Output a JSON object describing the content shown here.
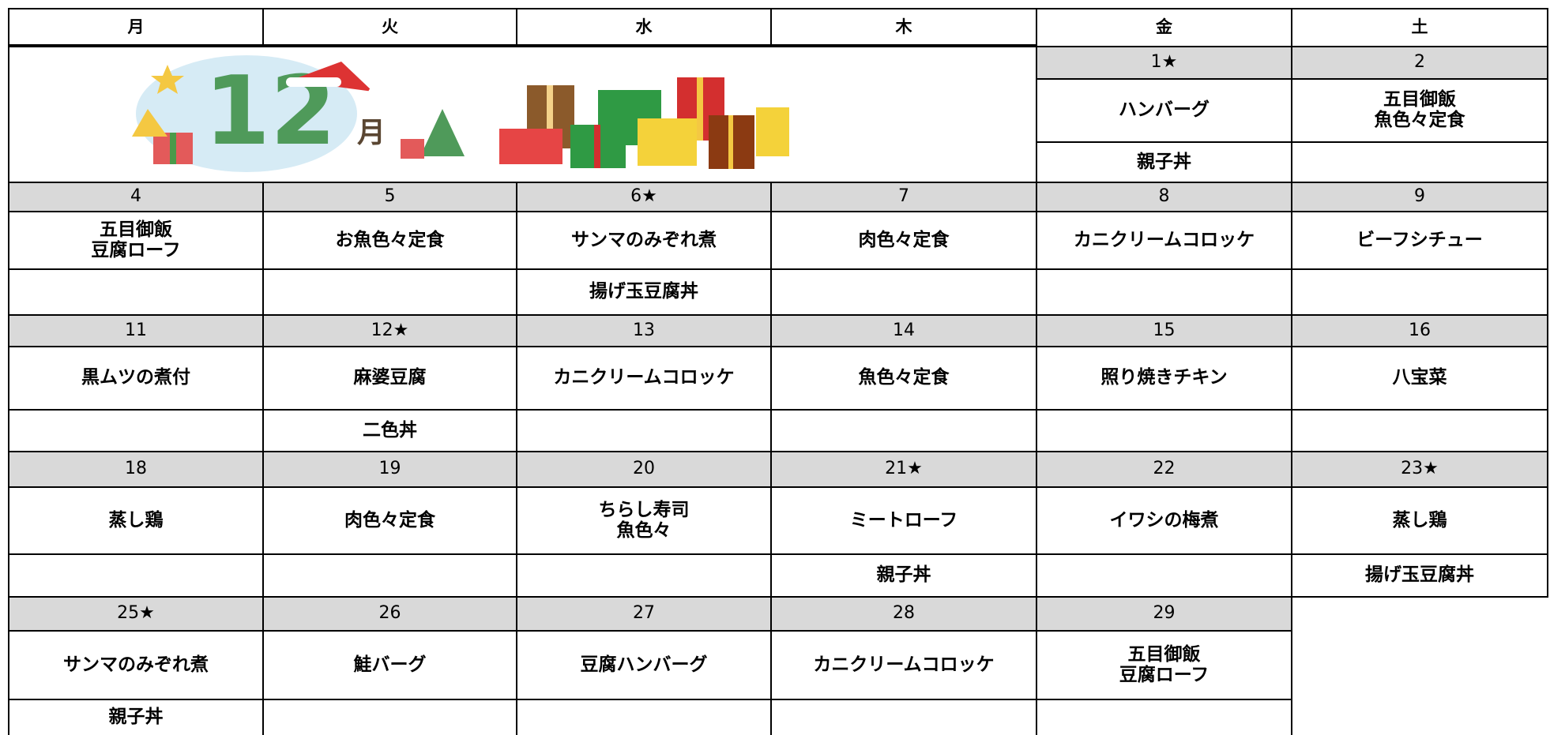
{
  "header": {
    "days": [
      "月",
      "火",
      "水",
      "木",
      "金",
      "土"
    ]
  },
  "banner": {
    "number": "12",
    "unit": "月"
  },
  "weeks": [
    {
      "days": [
        null,
        null,
        null,
        null,
        {
          "date": "1★",
          "main": "ハンバーグ",
          "second": "親子丼"
        },
        {
          "date": "2",
          "main": "五目御飯\n魚色々定食"
        }
      ]
    },
    {
      "days": [
        {
          "date": "4",
          "main": "五目御飯\n豆腐ローフ"
        },
        {
          "date": "5",
          "main": "お魚色々定食"
        },
        {
          "date": "6★",
          "main": "サンマのみぞれ煮",
          "second": "揚げ玉豆腐丼"
        },
        {
          "date": "7",
          "main": "肉色々定食"
        },
        {
          "date": "8",
          "main": "カニクリームコロッケ"
        },
        {
          "date": "9",
          "main": "ビーフシチュー"
        }
      ]
    },
    {
      "days": [
        {
          "date": "11",
          "main": "黒ムツの煮付"
        },
        {
          "date": "12★",
          "main": "麻婆豆腐",
          "second": "二色丼"
        },
        {
          "date": "13",
          "main": "カニクリームコロッケ"
        },
        {
          "date": "14",
          "main": "魚色々定食"
        },
        {
          "date": "15",
          "main": "照り焼きチキン"
        },
        {
          "date": "16",
          "main": "八宝菜"
        }
      ]
    },
    {
      "days": [
        {
          "date": "18",
          "main": "蒸し鶏"
        },
        {
          "date": "19",
          "main": "肉色々定食"
        },
        {
          "date": "20",
          "main": "ちらし寿司\n魚色々"
        },
        {
          "date": "21★",
          "main": "ミートローフ",
          "second": "親子丼"
        },
        {
          "date": "22",
          "main": "イワシの梅煮"
        },
        {
          "date": "23★",
          "main": "蒸し鶏",
          "second": "揚げ玉豆腐丼"
        }
      ]
    },
    {
      "days": [
        {
          "date": "25★",
          "main": "サンマのみぞれ煮",
          "second": "親子丼"
        },
        {
          "date": "26",
          "main": "鮭バーグ"
        },
        {
          "date": "27",
          "main": "豆腐ハンバーグ"
        },
        {
          "date": "28",
          "main": "カニクリームコロッケ"
        },
        {
          "date": "29",
          "main": "五目御飯\n豆腐ローフ"
        }
      ]
    }
  ]
}
